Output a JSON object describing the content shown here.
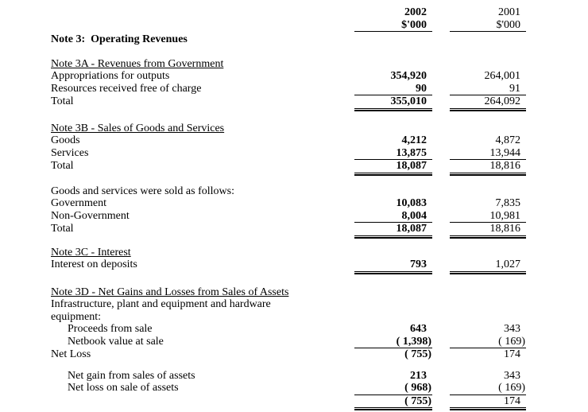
{
  "header": {
    "year_2002": "2002",
    "year_2001": "2001",
    "unit_2002": "$'000",
    "unit_2001": "$'000"
  },
  "title": "Note 3:  Operating Revenues",
  "note3a": {
    "heading": "Note 3A - Revenues from Government",
    "rows": [
      {
        "label": "Appropriations for outputs",
        "y2002": "354,920",
        "y2001": "264,001"
      },
      {
        "label": "Resources received free of charge",
        "y2002": "90",
        "y2001": "91"
      },
      {
        "label": "Total",
        "y2002": "355,010",
        "y2001": "264,092"
      }
    ]
  },
  "note3b": {
    "heading": "Note 3B - Sales of Goods and Services",
    "rows": [
      {
        "label": "Goods",
        "y2002": "4,212",
        "y2001": "4,872"
      },
      {
        "label": "Services",
        "y2002": "13,875",
        "y2001": "13,944"
      },
      {
        "label": "Total",
        "y2002": "18,087",
        "y2001": "18,816"
      }
    ]
  },
  "sold_as_follows": {
    "intro": "Goods and services were sold as follows:",
    "rows": [
      {
        "label": "Government",
        "y2002": "10,083",
        "y2001": "7,835"
      },
      {
        "label": "Non-Government",
        "y2002": "8,004",
        "y2001": "10,981"
      },
      {
        "label": "Total",
        "y2002": "18,087",
        "y2001": "18,816"
      }
    ]
  },
  "note3c": {
    "heading": "Note 3C - Interest",
    "rows": [
      {
        "label": "Interest on deposits",
        "y2002": "793",
        "y2001": "1,027"
      }
    ]
  },
  "note3d": {
    "heading": "Note 3D - Net Gains and Losses from Sales of Assets",
    "intro_line1": "Infrastructure, plant and equipment and hardware",
    "intro_line2": "equipment:",
    "rows": [
      {
        "label": "Proceeds from sale",
        "y2002": "643",
        "y2001": "343"
      },
      {
        "label": "Netbook value at sale",
        "y2002": "( 1,398)",
        "y2001": "( 169)"
      },
      {
        "label": "Net Loss",
        "y2002": "( 755)",
        "y2001": "174"
      }
    ],
    "summary_rows": [
      {
        "label": "Net gain from sales of assets",
        "y2002": "213",
        "y2001": "343"
      },
      {
        "label": "Net loss on sale of assets",
        "y2002": "( 968)",
        "y2001": "( 169)"
      },
      {
        "label": "",
        "y2002": "( 755)",
        "y2001": "174"
      }
    ]
  }
}
